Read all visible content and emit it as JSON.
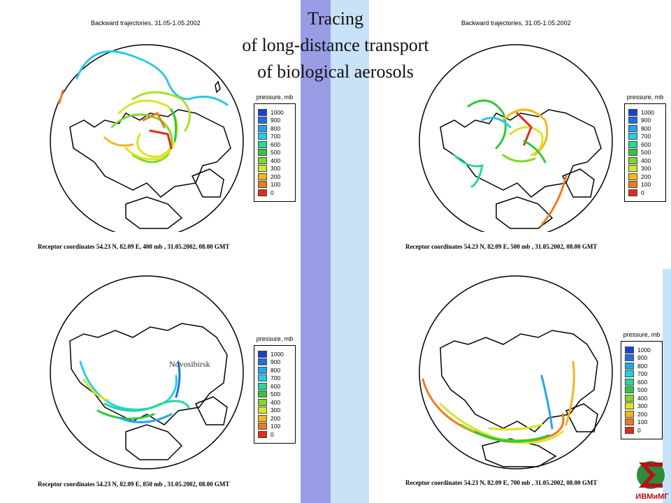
{
  "title": {
    "line1": "Tracing",
    "line2": "of long-distance  transport",
    "line3": "of biological aerosols"
  },
  "colors": {
    "stripe_dark": "#9a9de6",
    "stripe_light": "#c8e2f7",
    "logo_red": "#b3121a",
    "logo_green": "#2e8b3a"
  },
  "legend": {
    "title": "pressure, mb",
    "items": [
      {
        "label": "1000",
        "color": "#1b3fd1"
      },
      {
        "label": "900",
        "color": "#1f6fe0"
      },
      {
        "label": "800",
        "color": "#22a6ef"
      },
      {
        "label": "700",
        "color": "#20d0e8"
      },
      {
        "label": "600",
        "color": "#28d69b"
      },
      {
        "label": "500",
        "color": "#2ec93a"
      },
      {
        "label": "400",
        "color": "#7fd82b"
      },
      {
        "label": "300",
        "color": "#d8e623"
      },
      {
        "label": "200",
        "color": "#f4b61f"
      },
      {
        "label": "100",
        "color": "#f07a1e"
      },
      {
        "label": "0",
        "color": "#e02a1a"
      }
    ]
  },
  "panels": [
    {
      "title": "Backward trajectories, 31.05-1.05.2002",
      "receptor": "Receptor coordinates 54.23 N, 82.09 E, 400 mb , 31.05.2002, 08.00 GMT"
    },
    {
      "title": "Backward trajectories, 31.05-1.05.2002",
      "receptor": "Receptor coordinates 54.23 N, 82.09 E, 500 mb , 31.05.2002, 08.00 GMT"
    },
    {
      "title": "",
      "receptor": "Receptor coordinates 54.23 N, 82.09 E, 850 mb , 31.05.2002, 08.00 GMT"
    },
    {
      "title": "",
      "receptor": "Receptor coordinates 54.23 N, 82.09 E, 700 mb , 31.05.2002, 08.00 GMT"
    }
  ],
  "city_label": "Novosibirsk",
  "logo": {
    "text": "ИВМиМГ",
    "icon": "sigma-globe-logo"
  }
}
